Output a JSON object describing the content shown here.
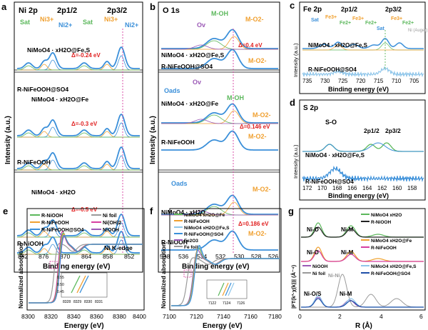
{
  "colors": {
    "blue": "#3a8fd9",
    "green": "#5cb85c",
    "orange": "#f0a030",
    "purple": "#9b59b6",
    "magenta": "#d63fa0",
    "gray": "#9a9a9a",
    "red": "#e02020",
    "darkblue": "#1f4fa8"
  },
  "panel_a": {
    "letter": "a",
    "title": "Ni 2p",
    "label_2p12": "2p1/2",
    "label_2p32": "2p3/2",
    "peaks": [
      "Sat",
      "Ni3+",
      "Ni2+",
      "Sat",
      "Ni3+",
      "Ni2+"
    ],
    "samples": [
      "NiMoO4 · xH2O@Fe,S",
      "R-NiFeOOH@SO4",
      "NiMoO4 · xH2O@Fe",
      "R-NiFeOOH",
      "NiMoO4 · xH2O",
      "R-NiOOH"
    ],
    "shifts": [
      "Δ=-0.24 eV",
      "Δ=-0.3 eV",
      "Δ=-0.5 eV"
    ],
    "xlabel": "Binding energy (eV)",
    "ylabel": "Intensity (a.u.)",
    "xticks": [
      "882",
      "876",
      "870",
      "864",
      "858",
      "852"
    ]
  },
  "panel_b": {
    "letter": "b",
    "title": "O 1s",
    "peaks": [
      "M-OH",
      "M-O2-",
      "Ov",
      "Oads"
    ],
    "samples": [
      "NiMoO4 · xH2O@Fe,S",
      "R-NiFeOOH@SO4",
      "NiMoO4 · xH2O@Fe",
      "R-NiFeOOH",
      "NiMoO4 · xH2O",
      "R-NiOOH"
    ],
    "shifts": [
      "Δ=0.4 eV",
      "Δ=0.146 eV",
      "Δ=0.186 eV"
    ],
    "xlabel": "Binding energy (eV)",
    "ylabel": "Intensity (a.u.)",
    "xticks": [
      "538",
      "536",
      "534",
      "532",
      "530",
      "528",
      "526"
    ]
  },
  "panel_c": {
    "letter": "c",
    "title": "Fe 2p",
    "peaks": [
      "Sat",
      "Fe3+",
      "Fe2+",
      "Fe3+",
      "Fe2+",
      "Sat",
      "Fe3+",
      "Fe2+",
      "Ni (Auger)"
    ],
    "label_2p12": "2p1/2",
    "label_2p32": "2p3/2",
    "samples": [
      "NiMoO4 · xH2O@Fe,S",
      "R-NiFeOOH@SO4"
    ],
    "xlabel": "Binding energy (eV)",
    "ylabel": "Intensity (a.u.)",
    "xticks": [
      "735",
      "730",
      "725",
      "720",
      "715",
      "710",
      "705"
    ]
  },
  "panel_d": {
    "letter": "d",
    "title": "S 2p",
    "peaks": [
      "S-O",
      "2p1/2",
      "2p3/2"
    ],
    "samples": [
      "NiMoO4 · xH2O@Fe,S",
      "R-NiFeOOH@SO4"
    ],
    "xlabel": "Binding energy (eV)",
    "ylabel": "Intensity (a.u.)",
    "xticks": [
      "172",
      "170",
      "168",
      "166",
      "164",
      "162",
      "160",
      "158"
    ]
  },
  "panel_e": {
    "letter": "e",
    "legend": [
      "R-NiOOH",
      "R-NiFeOOH",
      "R-NiFeOOH@SO4",
      "Ni foil",
      "Ni(OH)2",
      "NiOOH"
    ],
    "edge_label": "Ni K-edge",
    "inset_xticks": [
      "8328",
      "8329",
      "8330",
      "8331"
    ],
    "inset_yticks": [
      "0.45",
      "0.50",
      "0.55"
    ],
    "xlabel": "Energy (eV)",
    "ylabel": "Normalized absorption",
    "xticks": [
      "8300",
      "8320",
      "8340",
      "8360",
      "8380",
      "8400"
    ]
  },
  "panel_f": {
    "letter": "f",
    "legend": [
      "NiMoO4 xH2O@Fe",
      "R-NiFeOOH",
      "NiMoO4 xH2O@Fe,S",
      "R-NiFeOOH@SO4",
      "Fe2O3",
      "Fe foil"
    ],
    "inset_xticks": [
      "7122",
      "7124",
      "7126"
    ],
    "xlabel": "Energy (eV)",
    "ylabel": "Normalized absorption",
    "xticks": [
      "7100",
      "7120",
      "7140",
      "7160",
      "7180"
    ]
  },
  "panel_g": {
    "letter": "g",
    "labels": [
      "Ni-O",
      "Ni-M",
      "Ni-O",
      "Ni-M",
      "Ni-Ni",
      "Ni-O/S",
      "Ni-M"
    ],
    "legend": [
      "NiMoO4 xH2O",
      "R-NiOOH",
      "NiMoO4 xH2O@Fe",
      "R-NiFeOOH",
      "NiOOH",
      "Ni foil",
      "NiMoO4 xH2O@Fe,S",
      "R-NiFeOOH@SO4"
    ],
    "xlabel": "R (Å)",
    "ylabel": "|FT(k³·χ(k))| (Å⁻⁴)",
    "xticks": [
      "0",
      "2",
      "4",
      "6"
    ]
  }
}
